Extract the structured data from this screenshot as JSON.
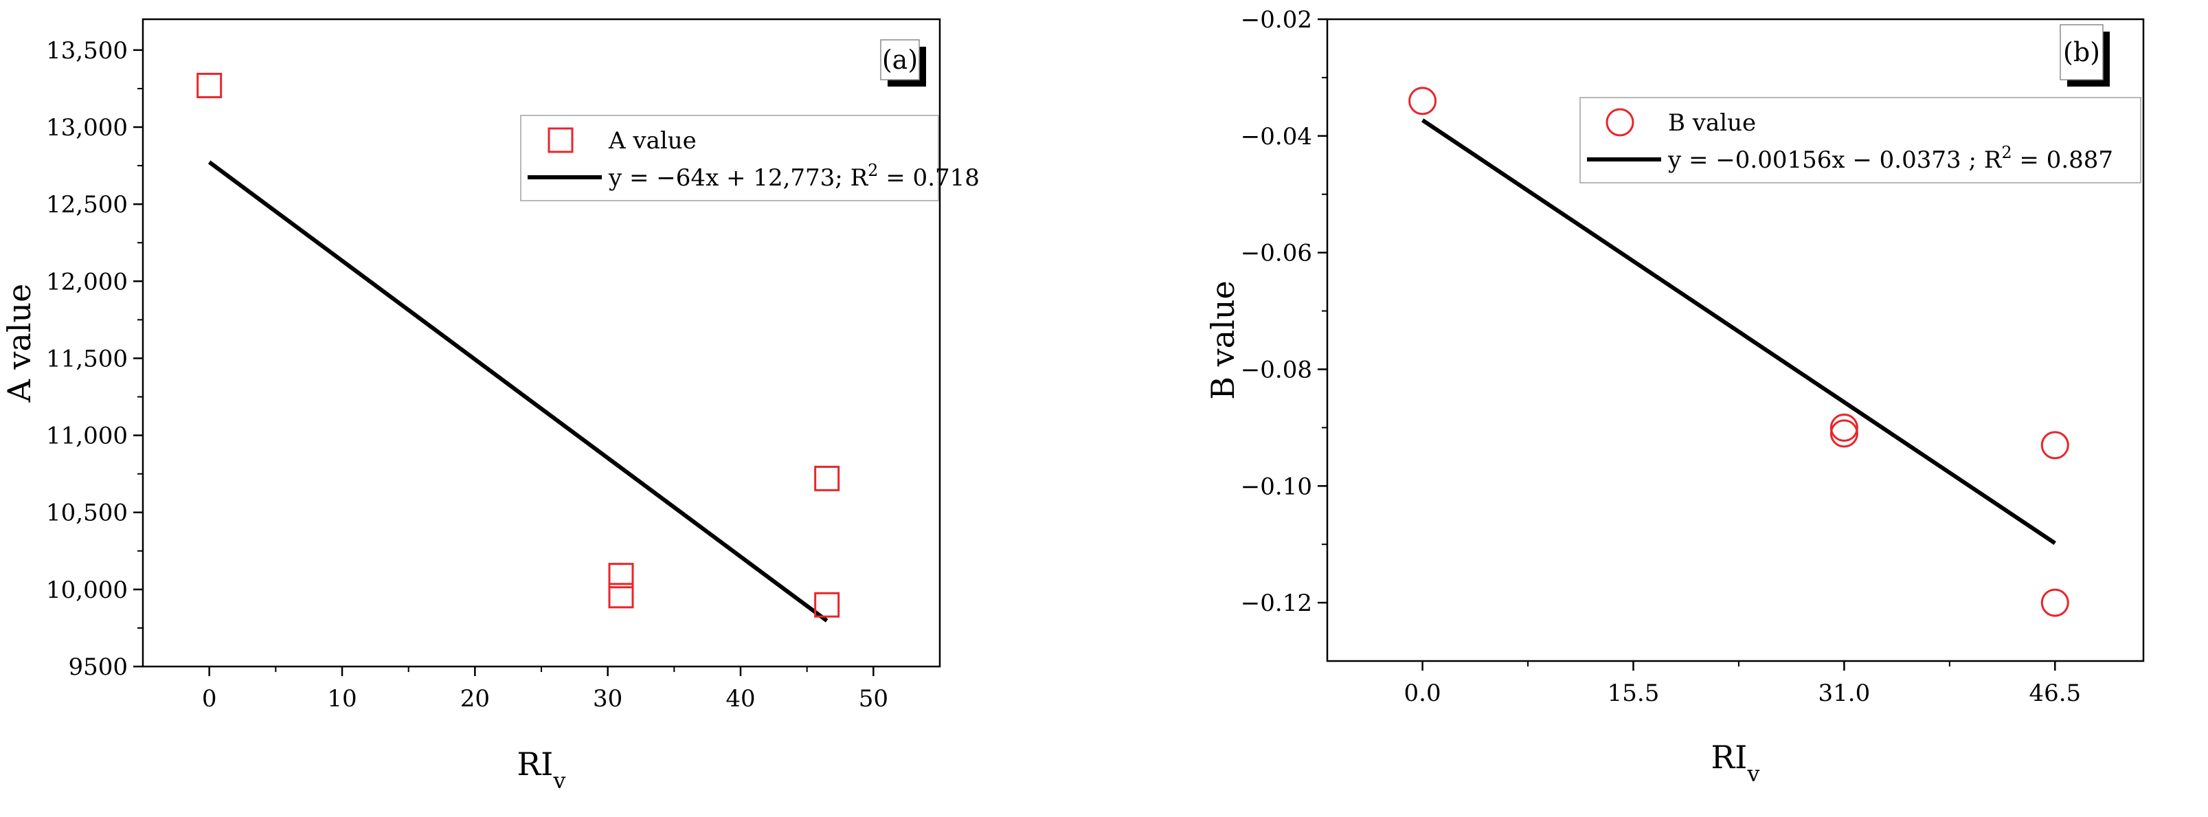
{
  "chart_data": [
    {
      "type": "scatter",
      "panel_label": "(a)",
      "xlabel": "RI",
      "xlabel_sub": "v",
      "ylabel": "A value",
      "xlim": [
        -5,
        55
      ],
      "ylim": [
        9500,
        13700
      ],
      "xticks": [
        0,
        10,
        20,
        30,
        40,
        50
      ],
      "xtick_labels": [
        "0",
        "10",
        "20",
        "30",
        "40",
        "50"
      ],
      "yticks": [
        9500,
        10000,
        10500,
        11000,
        11500,
        12000,
        12500,
        13000,
        13500
      ],
      "ytick_labels": [
        "9500",
        "10,000",
        "10,500",
        "11,000",
        "11,500",
        "12,000",
        "12,500",
        "13,000",
        "13,500"
      ],
      "series": [
        {
          "name": "A value",
          "marker": "square",
          "color": "#e8262a",
          "points": [
            [
              0,
              13270
            ],
            [
              31,
              10090
            ],
            [
              31,
              9960
            ],
            [
              46.5,
              10720
            ],
            [
              46.5,
              9900
            ]
          ]
        }
      ],
      "fit": {
        "x": [
          0,
          46.5
        ],
        "y": [
          12773,
          9797
        ],
        "color": "#000000",
        "label_main": "y = −64x + 12,773; R",
        "label_sup": "2",
        "label_tail": " = 0.718"
      },
      "legend_position": "top-right",
      "grid": false
    },
    {
      "type": "scatter",
      "panel_label": "(b)",
      "xlabel": "RI",
      "xlabel_sub": "v",
      "ylabel": "B value",
      "xlim": [
        -7,
        53
      ],
      "ylim": [
        -0.13,
        -0.02
      ],
      "xticks": [
        0,
        15.5,
        31,
        46.5
      ],
      "xtick_labels": [
        "0.0",
        "15.5",
        "31.0",
        "46.5"
      ],
      "yticks": [
        -0.12,
        -0.1,
        -0.08,
        -0.06,
        -0.04,
        -0.02
      ],
      "ytick_labels": [
        "−0.12",
        "−0.10",
        "−0.08",
        "−0.06",
        "−0.04",
        "−0.02"
      ],
      "series": [
        {
          "name": "B value",
          "marker": "circle",
          "color": "#e8262a",
          "points": [
            [
              0,
              -0.034
            ],
            [
              31,
              -0.09
            ],
            [
              31,
              -0.091
            ],
            [
              46.5,
              -0.093
            ],
            [
              46.5,
              -0.12
            ]
          ]
        }
      ],
      "fit": {
        "x": [
          0,
          46.5
        ],
        "y": [
          -0.0373,
          -0.1098
        ],
        "color": "#000000",
        "label_main": "y = −0.00156x − 0.0373 ; R",
        "label_sup": "2",
        "label_tail": " = 0.887"
      },
      "legend_position": "top-right",
      "grid": false
    }
  ]
}
